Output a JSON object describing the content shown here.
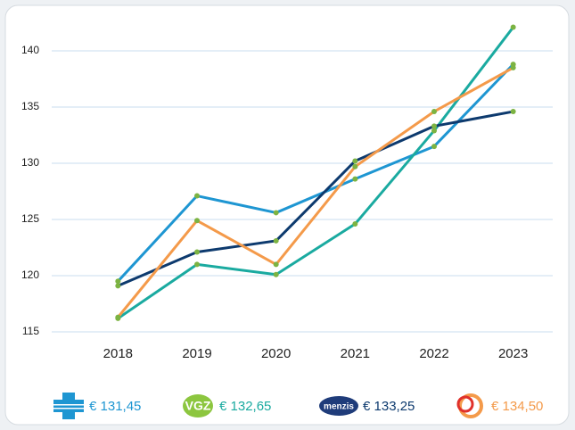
{
  "chart_data": {
    "type": "line",
    "categories": [
      "2018",
      "2019",
      "2020",
      "2021",
      "2022",
      "2023"
    ],
    "series": [
      {
        "name": "€ 131,45",
        "color": "#1e96d2",
        "values": [
          119.5,
          127.1,
          125.6,
          128.6,
          131.5,
          138.8
        ]
      },
      {
        "name": "€ 132,65",
        "color": "#1aaaa0",
        "values": [
          116.2,
          121.0,
          120.1,
          124.6,
          132.9,
          142.1
        ]
      },
      {
        "name": "€ 133,25",
        "color": "#0d3a6e",
        "values": [
          119.1,
          122.1,
          123.1,
          130.2,
          133.3,
          134.6
        ]
      },
      {
        "name": "€ 134,50",
        "color": "#f49a4a",
        "values": [
          116.3,
          124.9,
          121.0,
          129.7,
          134.6,
          138.5
        ]
      }
    ],
    "marker_color": "#7cb342",
    "ylim": [
      115,
      142.5
    ],
    "yticks": [
      115,
      120,
      125,
      130,
      135,
      140
    ],
    "grid": true
  }
}
